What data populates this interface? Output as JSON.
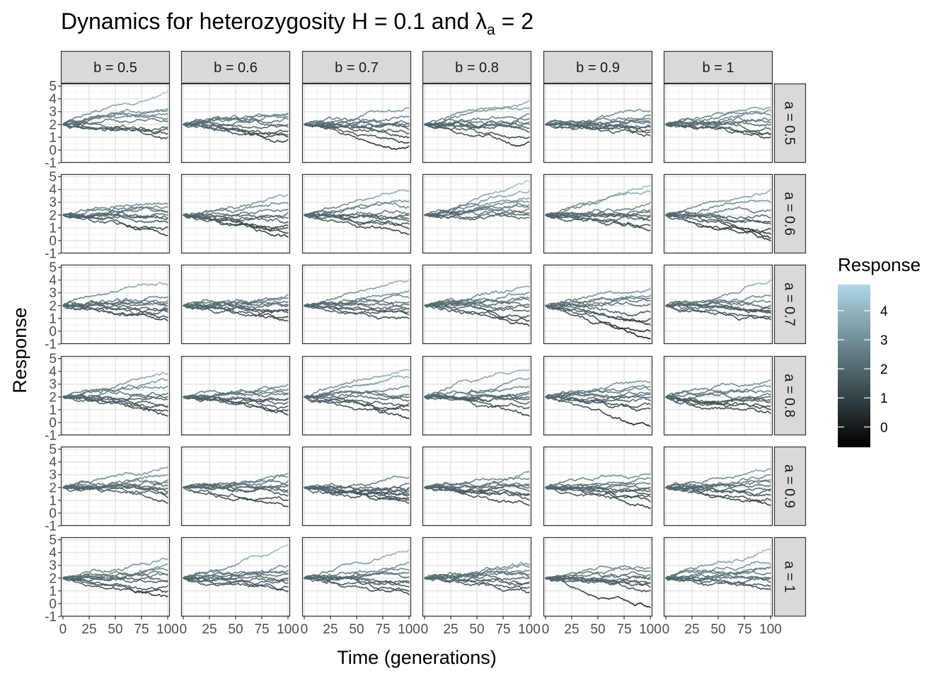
{
  "chart_data": {
    "type": "line",
    "title": "Dynamics for heterozygosity  H = 0.1  and  λa = 2",
    "title_parts": {
      "main": "Dynamics for heterozygosity  H = 0.1  and  ",
      "lambda": "λ",
      "subscript": "a",
      "tail": " = 2"
    },
    "xlabel": "Time (generations)",
    "ylabel": "Response",
    "facet_cols": [
      "b = 0.5",
      "b = 0.6",
      "b = 0.7",
      "b = 0.8",
      "b = 0.9",
      "b = 1"
    ],
    "facet_rows": [
      "a = 0.5",
      "a = 0.6",
      "a = 0.7",
      "a = 0.8",
      "a = 0.9",
      "a = 1"
    ],
    "x_ticks": [
      "0",
      "25",
      "50",
      "75",
      "100"
    ],
    "y_ticks": [
      "-1",
      "0",
      "1",
      "2",
      "3",
      "4",
      "5"
    ],
    "xlim": [
      -2,
      102
    ],
    "ylim": [
      -1,
      5.2
    ],
    "legend": {
      "title": "Response",
      "position": "right",
      "ticks": [
        "0",
        "1",
        "2",
        "3",
        "4"
      ],
      "range": [
        -0.7,
        4.9
      ],
      "color_low": "#000000",
      "color_high": "#add8e6"
    },
    "series_per_panel": 10,
    "initial_value": 2,
    "endpoints": [
      [
        [
          4.6,
          3.1,
          3.2,
          2.5,
          2.2,
          1.8,
          1.6,
          1.3,
          1.0,
          2.8
        ],
        [
          2.9,
          2.8,
          2.4,
          2.0,
          1.8,
          1.5,
          1.2,
          0.8,
          2.6,
          1.0
        ],
        [
          3.3,
          2.6,
          2.1,
          1.9,
          1.6,
          1.3,
          1.0,
          0.6,
          0.3,
          2.0
        ],
        [
          3.9,
          3.3,
          2.8,
          2.4,
          2.0,
          1.7,
          1.4,
          1.0,
          0.6,
          2.2
        ],
        [
          3.0,
          2.7,
          2.4,
          2.1,
          1.9,
          1.6,
          1.4,
          1.1,
          2.2,
          1.8
        ],
        [
          3.3,
          3.1,
          2.7,
          2.4,
          2.0,
          1.6,
          1.3,
          1.0,
          1.2,
          2.2
        ]
      ],
      [
        [
          2.9,
          2.6,
          2.3,
          2.0,
          1.7,
          1.4,
          1.0,
          0.4,
          1.8,
          2.2
        ],
        [
          3.6,
          2.9,
          2.4,
          1.8,
          1.4,
          1.0,
          0.6,
          0.3,
          2.2,
          1.2
        ],
        [
          3.9,
          3.1,
          2.6,
          2.1,
          1.7,
          1.3,
          0.9,
          0.5,
          2.0,
          1.5
        ],
        [
          4.6,
          3.9,
          3.3,
          2.8,
          2.5,
          2.2,
          2.0,
          1.8,
          3.0,
          2.6
        ],
        [
          4.3,
          3.8,
          3.0,
          2.4,
          2.0,
          1.6,
          1.2,
          0.8,
          2.2,
          1.9
        ],
        [
          4.0,
          3.0,
          2.4,
          1.8,
          1.3,
          0.9,
          0.5,
          0.0,
          0.2,
          1.5
        ]
      ],
      [
        [
          3.6,
          2.7,
          2.2,
          2.0,
          1.8,
          1.5,
          1.1,
          0.8,
          2.4,
          1.7
        ],
        [
          2.9,
          2.6,
          2.3,
          2.0,
          1.7,
          1.4,
          1.1,
          0.8,
          2.1,
          1.6
        ],
        [
          4.0,
          3.2,
          2.6,
          2.1,
          1.8,
          1.5,
          1.3,
          1.0,
          2.3,
          1.7
        ],
        [
          3.5,
          3.0,
          2.6,
          2.1,
          1.6,
          1.2,
          0.8,
          0.4,
          2.4,
          1.9
        ],
        [
          3.3,
          2.8,
          2.4,
          2.1,
          1.5,
          1.0,
          0.5,
          0.0,
          -0.6,
          2.6
        ],
        [
          4.0,
          2.8,
          2.3,
          2.0,
          1.6,
          1.4,
          1.1,
          0.9,
          1.5,
          1.8
        ]
      ],
      [
        [
          3.8,
          3.3,
          2.8,
          2.3,
          1.8,
          1.3,
          0.9,
          0.5,
          2.0,
          1.2
        ],
        [
          3.0,
          2.6,
          2.2,
          1.9,
          1.6,
          1.3,
          1.0,
          0.6,
          2.3,
          1.8
        ],
        [
          4.1,
          3.5,
          2.8,
          2.2,
          1.7,
          1.3,
          0.9,
          0.3,
          2.0,
          1.5
        ],
        [
          4.1,
          3.4,
          2.8,
          2.3,
          2.0,
          1.6,
          1.2,
          0.5,
          2.4,
          1.8
        ],
        [
          3.2,
          2.8,
          2.5,
          2.2,
          2.0,
          1.7,
          1.4,
          1.1,
          -0.3,
          2.3
        ],
        [
          3.3,
          2.8,
          2.4,
          2.0,
          1.6,
          1.3,
          1.0,
          0.7,
          2.2,
          1.8
        ]
      ],
      [
        [
          3.6,
          3.0,
          2.6,
          2.2,
          1.9,
          1.6,
          1.2,
          0.8,
          2.4,
          1.7
        ],
        [
          3.1,
          2.8,
          2.5,
          2.1,
          1.8,
          1.4,
          1.0,
          0.5,
          2.2,
          1.6
        ],
        [
          2.8,
          2.3,
          2.0,
          1.7,
          1.5,
          1.2,
          1.0,
          0.8,
          1.9,
          1.4
        ],
        [
          3.2,
          2.7,
          2.3,
          2.0,
          1.7,
          1.4,
          1.0,
          0.6,
          2.1,
          1.5
        ],
        [
          3.1,
          2.7,
          2.3,
          2.0,
          1.7,
          1.3,
          0.9,
          0.4,
          1.8,
          1.5
        ],
        [
          3.5,
          3.0,
          2.6,
          2.2,
          1.8,
          1.4,
          1.0,
          0.6,
          2.4,
          1.9
        ]
      ],
      [
        [
          3.5,
          3.1,
          2.6,
          2.2,
          1.8,
          1.4,
          1.0,
          0.6,
          2.3,
          1.7
        ],
        [
          4.6,
          3.0,
          2.6,
          2.3,
          2.0,
          1.6,
          1.3,
          1.0,
          2.4,
          1.8
        ],
        [
          4.2,
          3.2,
          2.6,
          2.1,
          1.7,
          1.3,
          1.0,
          0.7,
          2.4,
          1.6
        ],
        [
          3.1,
          2.9,
          2.6,
          2.3,
          2.0,
          1.6,
          1.3,
          0.9,
          2.1,
          1.7
        ],
        [
          2.8,
          2.5,
          2.2,
          1.9,
          1.6,
          1.3,
          1.0,
          -0.3,
          2.1,
          1.6
        ],
        [
          4.3,
          3.1,
          2.8,
          2.4,
          2.0,
          1.7,
          1.4,
          1.1,
          2.9,
          2.0
        ]
      ]
    ]
  }
}
